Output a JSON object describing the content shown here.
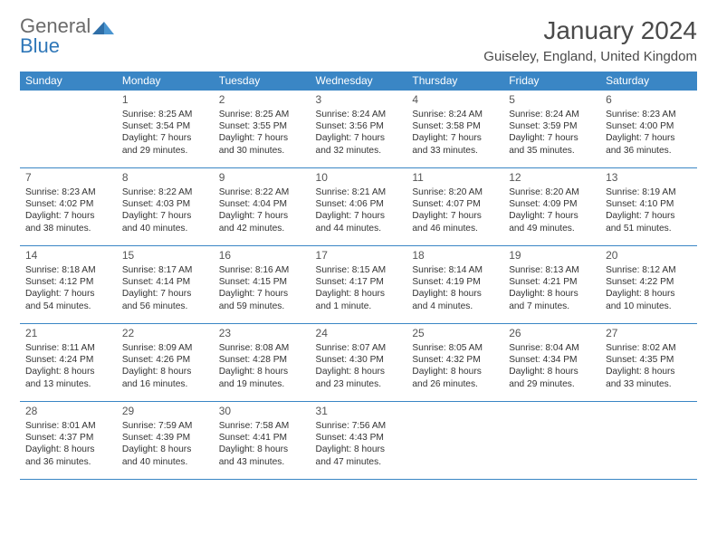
{
  "logo": {
    "line1": "General",
    "line2": "Blue"
  },
  "title": "January 2024",
  "subtitle": "Guiseley, England, United Kingdom",
  "colors": {
    "header_bg": "#3a86c5",
    "header_text": "#ffffff",
    "rule": "#3a86c5",
    "logo_gray": "#6b6b6b",
    "logo_blue": "#2f77b8"
  },
  "weekdays": [
    "Sunday",
    "Monday",
    "Tuesday",
    "Wednesday",
    "Thursday",
    "Friday",
    "Saturday"
  ],
  "weeks": [
    [
      null,
      {
        "n": "1",
        "sunrise": "8:25 AM",
        "sunset": "3:54 PM",
        "day": "7 hours and 29 minutes."
      },
      {
        "n": "2",
        "sunrise": "8:25 AM",
        "sunset": "3:55 PM",
        "day": "7 hours and 30 minutes."
      },
      {
        "n": "3",
        "sunrise": "8:24 AM",
        "sunset": "3:56 PM",
        "day": "7 hours and 32 minutes."
      },
      {
        "n": "4",
        "sunrise": "8:24 AM",
        "sunset": "3:58 PM",
        "day": "7 hours and 33 minutes."
      },
      {
        "n": "5",
        "sunrise": "8:24 AM",
        "sunset": "3:59 PM",
        "day": "7 hours and 35 minutes."
      },
      {
        "n": "6",
        "sunrise": "8:23 AM",
        "sunset": "4:00 PM",
        "day": "7 hours and 36 minutes."
      }
    ],
    [
      {
        "n": "7",
        "sunrise": "8:23 AM",
        "sunset": "4:02 PM",
        "day": "7 hours and 38 minutes."
      },
      {
        "n": "8",
        "sunrise": "8:22 AM",
        "sunset": "4:03 PM",
        "day": "7 hours and 40 minutes."
      },
      {
        "n": "9",
        "sunrise": "8:22 AM",
        "sunset": "4:04 PM",
        "day": "7 hours and 42 minutes."
      },
      {
        "n": "10",
        "sunrise": "8:21 AM",
        "sunset": "4:06 PM",
        "day": "7 hours and 44 minutes."
      },
      {
        "n": "11",
        "sunrise": "8:20 AM",
        "sunset": "4:07 PM",
        "day": "7 hours and 46 minutes."
      },
      {
        "n": "12",
        "sunrise": "8:20 AM",
        "sunset": "4:09 PM",
        "day": "7 hours and 49 minutes."
      },
      {
        "n": "13",
        "sunrise": "8:19 AM",
        "sunset": "4:10 PM",
        "day": "7 hours and 51 minutes."
      }
    ],
    [
      {
        "n": "14",
        "sunrise": "8:18 AM",
        "sunset": "4:12 PM",
        "day": "7 hours and 54 minutes."
      },
      {
        "n": "15",
        "sunrise": "8:17 AM",
        "sunset": "4:14 PM",
        "day": "7 hours and 56 minutes."
      },
      {
        "n": "16",
        "sunrise": "8:16 AM",
        "sunset": "4:15 PM",
        "day": "7 hours and 59 minutes."
      },
      {
        "n": "17",
        "sunrise": "8:15 AM",
        "sunset": "4:17 PM",
        "day": "8 hours and 1 minute."
      },
      {
        "n": "18",
        "sunrise": "8:14 AM",
        "sunset": "4:19 PM",
        "day": "8 hours and 4 minutes."
      },
      {
        "n": "19",
        "sunrise": "8:13 AM",
        "sunset": "4:21 PM",
        "day": "8 hours and 7 minutes."
      },
      {
        "n": "20",
        "sunrise": "8:12 AM",
        "sunset": "4:22 PM",
        "day": "8 hours and 10 minutes."
      }
    ],
    [
      {
        "n": "21",
        "sunrise": "8:11 AM",
        "sunset": "4:24 PM",
        "day": "8 hours and 13 minutes."
      },
      {
        "n": "22",
        "sunrise": "8:09 AM",
        "sunset": "4:26 PM",
        "day": "8 hours and 16 minutes."
      },
      {
        "n": "23",
        "sunrise": "8:08 AM",
        "sunset": "4:28 PM",
        "day": "8 hours and 19 minutes."
      },
      {
        "n": "24",
        "sunrise": "8:07 AM",
        "sunset": "4:30 PM",
        "day": "8 hours and 23 minutes."
      },
      {
        "n": "25",
        "sunrise": "8:05 AM",
        "sunset": "4:32 PM",
        "day": "8 hours and 26 minutes."
      },
      {
        "n": "26",
        "sunrise": "8:04 AM",
        "sunset": "4:34 PM",
        "day": "8 hours and 29 minutes."
      },
      {
        "n": "27",
        "sunrise": "8:02 AM",
        "sunset": "4:35 PM",
        "day": "8 hours and 33 minutes."
      }
    ],
    [
      {
        "n": "28",
        "sunrise": "8:01 AM",
        "sunset": "4:37 PM",
        "day": "8 hours and 36 minutes."
      },
      {
        "n": "29",
        "sunrise": "7:59 AM",
        "sunset": "4:39 PM",
        "day": "8 hours and 40 minutes."
      },
      {
        "n": "30",
        "sunrise": "7:58 AM",
        "sunset": "4:41 PM",
        "day": "8 hours and 43 minutes."
      },
      {
        "n": "31",
        "sunrise": "7:56 AM",
        "sunset": "4:43 PM",
        "day": "8 hours and 47 minutes."
      },
      null,
      null,
      null
    ]
  ],
  "labels": {
    "sunrise": "Sunrise:",
    "sunset": "Sunset:",
    "daylight": "Daylight:"
  }
}
